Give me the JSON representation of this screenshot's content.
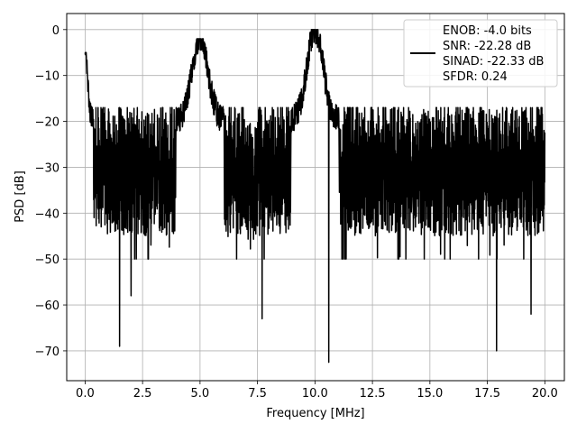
{
  "chart_data": {
    "type": "line",
    "xlabel": "Frequency [MHz]",
    "ylabel": "PSD [dB]",
    "xlim": [
      -0.8,
      20.85
    ],
    "ylim": [
      -76.5,
      3.5
    ],
    "xticks": [
      0.0,
      2.5,
      5.0,
      7.5,
      10.0,
      12.5,
      15.0,
      17.5,
      20.0
    ],
    "xtick_labels": [
      "0.0",
      "2.5",
      "5.0",
      "7.5",
      "10.0",
      "12.5",
      "15.0",
      "17.5",
      "20.0"
    ],
    "yticks": [
      0,
      -10,
      -20,
      -30,
      -40,
      -50,
      -60,
      -70
    ],
    "ytick_labels": [
      "0",
      "−10",
      "−20",
      "−30",
      "−40",
      "−50",
      "−60",
      "−70"
    ],
    "grid": true,
    "legend_position": "top-right",
    "legend": [
      "ENOB: -4.0 bits",
      "SNR: -22.28 dB",
      "SINAD: -22.33 dB",
      "SFDR: 0.24"
    ],
    "series_color": "#000000",
    "series": [
      {
        "x_range": [
          0.0,
          20.0
        ],
        "noise_floor_db": -30,
        "noise_floor_spread_db": [
          -42,
          -20
        ],
        "peaks": [
          {
            "x": 0.0,
            "y": -5
          },
          {
            "x": 5.0,
            "y": -2
          },
          {
            "x": 10.0,
            "y": 0
          }
        ],
        "notable_minima": [
          {
            "x": 1.5,
            "y": -69
          },
          {
            "x": 2.0,
            "y": -58
          },
          {
            "x": 7.7,
            "y": -63
          },
          {
            "x": 10.6,
            "y": -72.5
          },
          {
            "x": 17.9,
            "y": -70
          },
          {
            "x": 19.4,
            "y": -62
          }
        ]
      }
    ]
  }
}
